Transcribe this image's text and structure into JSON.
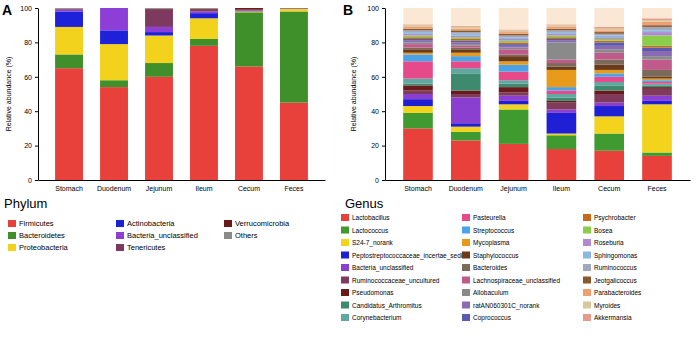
{
  "chart_data": [
    {
      "type": "bar",
      "title": "A",
      "subtitle": "Phylum",
      "y_label": "Relative abundance (%)",
      "categories": [
        "Stomach",
        "Duodenum",
        "Jejunum",
        "Ileum",
        "Cecum",
        "Feces"
      ],
      "stacked": true,
      "legend": "bottom",
      "ylim": [
        0,
        100
      ],
      "yticks": [
        0,
        20,
        40,
        60,
        80,
        100
      ],
      "series": [
        {
          "name": "Firmicutes",
          "color": "#e8403a",
          "values": [
            65,
            54,
            60,
            78,
            66,
            45
          ]
        },
        {
          "name": "Bacteroidetes",
          "color": "#3f8f2a",
          "values": [
            8,
            4,
            8,
            4,
            31.5,
            53
          ]
        },
        {
          "name": "Proteobacteria",
          "color": "#f2d21c",
          "values": [
            16,
            21,
            16,
            12,
            0.5,
            1.5
          ]
        },
        {
          "name": "Actinobacteria",
          "color": "#1d22d8",
          "values": [
            9,
            8,
            2,
            3,
            0.2,
            0.2
          ]
        },
        {
          "name": "Bacteria_unclassified",
          "color": "#8c3ed6",
          "values": [
            1,
            13,
            3,
            1,
            0.3,
            0.1
          ]
        },
        {
          "name": "Tenericutes",
          "color": "#7e3a5e",
          "values": [
            0.5,
            0,
            10,
            1,
            0.5,
            0.1
          ]
        },
        {
          "name": "Verrucomicrobia",
          "color": "#6b1a1a",
          "values": [
            0.2,
            0,
            0.5,
            0.5,
            1,
            0.1
          ]
        },
        {
          "name": "Others",
          "color": "#8a8a8a",
          "values": [
            0.3,
            0,
            0.5,
            0.5,
            0,
            0
          ]
        }
      ]
    },
    {
      "type": "bar",
      "title": "B",
      "subtitle": "Genus",
      "y_label": "Relative abundance (%)",
      "categories": [
        "Stomach",
        "Duodenum",
        "Jejunum",
        "Ileum",
        "Cecum",
        "Feces"
      ],
      "stacked": true,
      "legend": "bottom",
      "ylim": [
        0,
        100
      ],
      "yticks": [
        0,
        20,
        40,
        60,
        80,
        100
      ],
      "series": [
        {
          "name": "Lactobacillus",
          "color": "#e8403a",
          "values": [
            30,
            23,
            21,
            18,
            17,
            14
          ]
        },
        {
          "name": "Lactococcus",
          "color": "#3f9a2f",
          "values": [
            9,
            5,
            20,
            8,
            10,
            2
          ]
        },
        {
          "name": "S24-7_norank",
          "color": "#f3d31b",
          "values": [
            4,
            3,
            3,
            1,
            10,
            28
          ]
        },
        {
          "name": "Peptostreptococcaceae_incertae_sedis",
          "color": "#1f1fd6",
          "values": [
            4,
            2,
            2,
            12,
            6,
            2
          ]
        },
        {
          "name": "Bacteria_unclassified",
          "color": "#8a3fd1",
          "values": [
            3,
            15,
            3,
            2,
            2,
            3
          ]
        },
        {
          "name": "Ruminococcaceae_uncultured",
          "color": "#7f3a5c",
          "values": [
            2,
            2,
            2,
            4,
            5,
            4
          ]
        },
        {
          "name": "Pseudomonas",
          "color": "#6a1a1a",
          "values": [
            3,
            2,
            3,
            1,
            2,
            1
          ]
        },
        {
          "name": "Candidatus_Arthromitus",
          "color": "#3d8a6e",
          "values": [
            1,
            10,
            2,
            2,
            3,
            1
          ]
        },
        {
          "name": "Corynebacterium",
          "color": "#5fa7a0",
          "values": [
            3,
            3,
            2,
            2,
            2,
            1
          ]
        },
        {
          "name": "Pasteurella",
          "color": "#e64a8a",
          "values": [
            10,
            4,
            5,
            2,
            3,
            1
          ]
        },
        {
          "name": "Streptococcus",
          "color": "#4aa3e6",
          "values": [
            4,
            3,
            4,
            2,
            2,
            1
          ]
        },
        {
          "name": "Mycoplasma",
          "color": "#e89b1a",
          "values": [
            1,
            2,
            2,
            10,
            2,
            1
          ]
        },
        {
          "name": "Staphylococcus",
          "color": "#6b3a1a",
          "values": [
            2,
            2,
            3,
            2,
            3,
            1
          ]
        },
        {
          "name": "Bacteroides",
          "color": "#7a6a5a",
          "values": [
            1,
            1,
            1,
            2,
            3,
            4
          ]
        },
        {
          "name": "Lachnospiraceae_unclassified",
          "color": "#c05a8a",
          "values": [
            2,
            1,
            3,
            2,
            4,
            6
          ]
        },
        {
          "name": "Allobaculum",
          "color": "#8a8a8a",
          "values": [
            1,
            1,
            1,
            10,
            2,
            2
          ]
        },
        {
          "name": "ratAN060301C_norank",
          "color": "#8a6ab0",
          "values": [
            1,
            1,
            1,
            1,
            2,
            3
          ]
        },
        {
          "name": "Coprococcus",
          "color": "#5a5ab0",
          "values": [
            1,
            1,
            1,
            1,
            2,
            2
          ]
        },
        {
          "name": "Psychrobacter",
          "color": "#c46a1a",
          "values": [
            1,
            1,
            1,
            1,
            1,
            1
          ]
        },
        {
          "name": "Bosea",
          "color": "#8acd4a",
          "values": [
            1,
            1,
            1,
            1,
            1,
            6
          ]
        },
        {
          "name": "Roseburia",
          "color": "#b08ad0",
          "values": [
            1,
            1,
            1,
            1,
            1,
            2
          ]
        },
        {
          "name": "Sphingomonas",
          "color": "#8ab8e0",
          "values": [
            1,
            1,
            1,
            1,
            1,
            1
          ]
        },
        {
          "name": "Ruminococcus",
          "color": "#a0a8c0",
          "values": [
            1,
            1,
            1,
            1,
            1,
            2
          ]
        },
        {
          "name": "Jeotgalicoccus",
          "color": "#8a5a2a",
          "values": [
            1,
            1,
            1,
            1,
            1,
            1
          ]
        },
        {
          "name": "Parabacteroides",
          "color": "#f0a070",
          "values": [
            1,
            1,
            1,
            1,
            1,
            2
          ]
        },
        {
          "name": "Myroides",
          "color": "#d8c8a0",
          "values": [
            1,
            1,
            1,
            1,
            1,
            1
          ]
        },
        {
          "name": "Akkermansia",
          "color": "#e89a8a",
          "values": [
            0.5,
            0.5,
            0.5,
            0.5,
            1,
            1
          ]
        },
        {
          "name": null,
          "color": "#fbe8d4",
          "values": [
            9.5,
            10.5,
            12.5,
            9.5,
            11,
            6
          ]
        }
      ]
    }
  ]
}
